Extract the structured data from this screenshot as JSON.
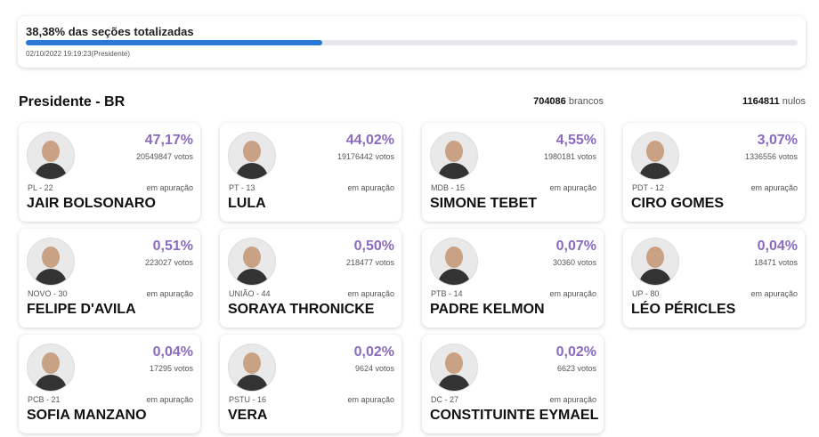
{
  "header": {
    "title": "38,38% das seções totalizadas",
    "progress": 38.38,
    "timestamp": "02/10/2022 19:19:23(Presidente)"
  },
  "section": {
    "title": "Presidente - BR",
    "blank_count": "704086",
    "blank_label": "brancos",
    "null_count": "1164811",
    "null_label": "nulos"
  },
  "candidates": [
    {
      "name": "JAIR BOLSONARO",
      "party": "PL - 22",
      "percent": "47,17%",
      "votes": "20549847 votos",
      "status": "em apuração"
    },
    {
      "name": "LULA",
      "party": "PT - 13",
      "percent": "44,02%",
      "votes": "19176442 votos",
      "status": "em apuração"
    },
    {
      "name": "SIMONE TEBET",
      "party": "MDB - 15",
      "percent": "4,55%",
      "votes": "1980181 votos",
      "status": "em apuração"
    },
    {
      "name": "CIRO GOMES",
      "party": "PDT - 12",
      "percent": "3,07%",
      "votes": "1336556 votos",
      "status": "em apuração"
    },
    {
      "name": "FELIPE D'AVILA",
      "party": "NOVO - 30",
      "percent": "0,51%",
      "votes": "223027 votos",
      "status": "em apuração"
    },
    {
      "name": "SORAYA THRONICKE",
      "party": "UNIÃO - 44",
      "percent": "0,50%",
      "votes": "218477 votos",
      "status": "em apuração"
    },
    {
      "name": "PADRE KELMON",
      "party": "PTB - 14",
      "percent": "0,07%",
      "votes": "30360 votos",
      "status": "em apuração"
    },
    {
      "name": "LÉO PÉRICLES",
      "party": "UP - 80",
      "percent": "0,04%",
      "votes": "18471 votos",
      "status": "em apuração"
    },
    {
      "name": "SOFIA MANZANO",
      "party": "PCB - 21",
      "percent": "0,04%",
      "votes": "17295 votos",
      "status": "em apuração"
    },
    {
      "name": "VERA",
      "party": "PSTU - 16",
      "percent": "0,02%",
      "votes": "9624 votos",
      "status": "em apuração"
    },
    {
      "name": "CONSTITUINTE EYMAEL",
      "party": "DC - 27",
      "percent": "0,02%",
      "votes": "6623 votos",
      "status": "em apuração"
    }
  ]
}
